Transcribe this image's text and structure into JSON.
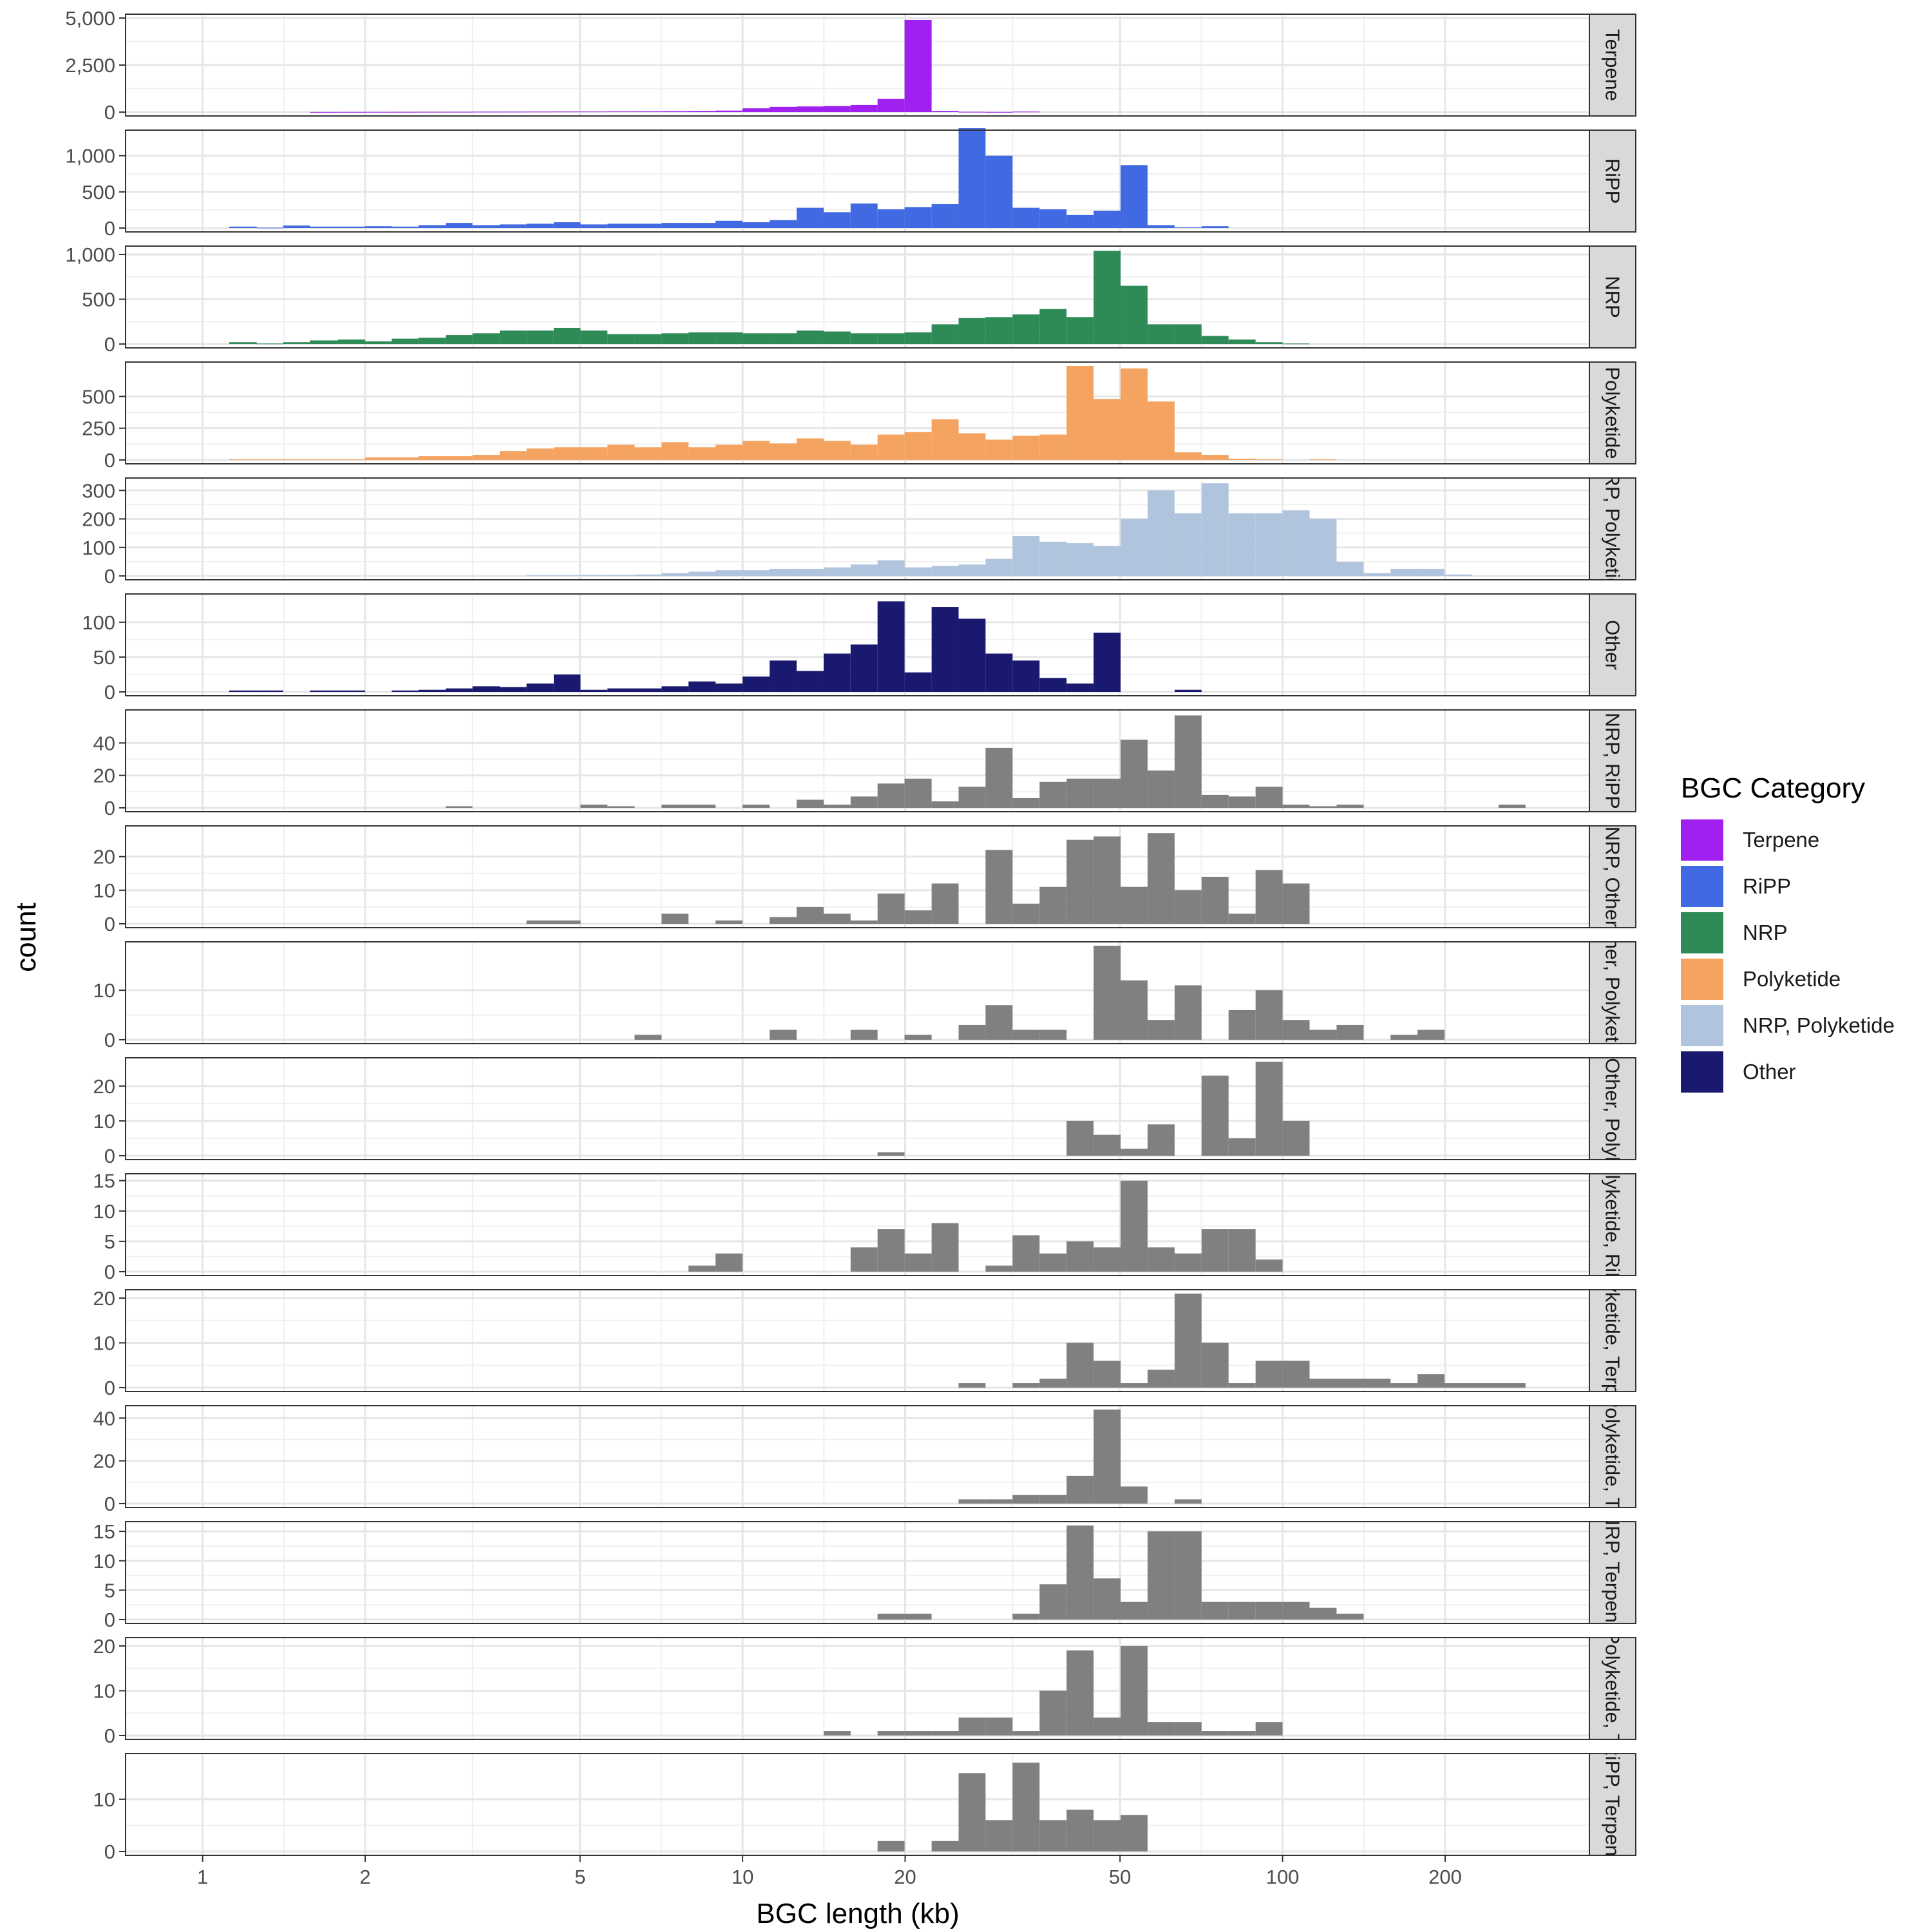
{
  "chart_data": {
    "type": "bar",
    "subtype": "faceted-histogram",
    "x_scale": "log10",
    "xlim": [
      0.72,
      370
    ],
    "x_ticks": [
      1,
      2,
      5,
      10,
      20,
      50,
      100,
      200
    ],
    "x_tick_labels": [
      "1",
      "2",
      "5",
      "10",
      "20",
      "50",
      "100",
      "200"
    ],
    "xlabel": "BGC length (kb)",
    "ylabel": "count",
    "grid": true,
    "legend": {
      "title": "BGC Category",
      "position": "right",
      "items": [
        {
          "label": "Terpene",
          "color": "#A020F0"
        },
        {
          "label": "RiPP",
          "color": "#4169E1"
        },
        {
          "label": "NRP",
          "color": "#2E8B57"
        },
        {
          "label": "Polyketide",
          "color": "#F4A460"
        },
        {
          "label": "NRP, Polyketide",
          "color": "#B0C4DE"
        },
        {
          "label": "Other",
          "color": "#191970"
        }
      ]
    },
    "bin_edges_kb": [
      1.0,
      1.12,
      1.26,
      1.41,
      1.58,
      1.78,
      2.0,
      2.24,
      2.51,
      2.82,
      3.16,
      3.55,
      3.98,
      4.47,
      5.01,
      5.62,
      6.31,
      7.08,
      7.94,
      8.91,
      10.0,
      11.22,
      12.59,
      14.13,
      15.85,
      17.78,
      19.95,
      22.39,
      25.12,
      28.18,
      31.62,
      35.48,
      39.81,
      44.67,
      50.12,
      56.23,
      63.1,
      70.79,
      79.43,
      89.13,
      100.0,
      112.2,
      125.9,
      141.3,
      158.5,
      177.8,
      199.5,
      223.9,
      251.2,
      281.8
    ],
    "facets": [
      {
        "strip": "Terpene",
        "color": "#A020F0",
        "ylim": [
          0,
          5000
        ],
        "y_ticks": [
          0,
          2500,
          5000
        ],
        "y_tick_labels": [
          "0",
          "2,500",
          "5,000"
        ],
        "counts": [
          0,
          0,
          0,
          0,
          5,
          8,
          10,
          12,
          14,
          16,
          20,
          22,
          25,
          28,
          30,
          35,
          40,
          50,
          60,
          80,
          200,
          280,
          300,
          320,
          380,
          700,
          4900,
          60,
          15,
          8,
          25,
          0,
          0,
          0,
          0,
          0,
          0,
          0,
          0,
          0,
          0,
          0,
          0,
          0,
          0,
          0,
          0,
          0,
          0
        ]
      },
      {
        "strip": "RiPP",
        "color": "#4169E1",
        "ylim": [
          0,
          1300
        ],
        "y_ticks": [
          0,
          500,
          1000
        ],
        "y_tick_labels": [
          "0",
          "500",
          "1,000"
        ],
        "counts": [
          0,
          20,
          5,
          35,
          20,
          20,
          25,
          20,
          40,
          70,
          40,
          50,
          60,
          80,
          50,
          60,
          60,
          70,
          70,
          100,
          80,
          110,
          280,
          220,
          340,
          260,
          290,
          330,
          1380,
          1000,
          280,
          260,
          180,
          240,
          870,
          40,
          10,
          25,
          0,
          0,
          0,
          0,
          0,
          0,
          0,
          0,
          0,
          0,
          0
        ]
      },
      {
        "strip": "NRP",
        "color": "#2E8B57",
        "ylim": [
          0,
          1050
        ],
        "y_ticks": [
          0,
          500,
          1000
        ],
        "y_tick_labels": [
          "0",
          "500",
          "1,000"
        ],
        "counts": [
          0,
          20,
          5,
          20,
          40,
          50,
          30,
          60,
          70,
          100,
          120,
          150,
          150,
          180,
          150,
          110,
          110,
          120,
          130,
          130,
          120,
          120,
          150,
          140,
          120,
          120,
          130,
          220,
          290,
          300,
          330,
          390,
          300,
          1040,
          650,
          220,
          220,
          90,
          50,
          20,
          5,
          0,
          0,
          0,
          0,
          0,
          0,
          0,
          0
        ]
      },
      {
        "strip": "Polyketide",
        "color": "#F4A460",
        "ylim": [
          0,
          740
        ],
        "y_ticks": [
          0,
          250,
          500
        ],
        "y_tick_labels": [
          "0",
          "250",
          "500"
        ],
        "counts": [
          0,
          5,
          5,
          5,
          5,
          5,
          20,
          20,
          30,
          30,
          40,
          70,
          90,
          100,
          100,
          120,
          100,
          140,
          100,
          120,
          150,
          130,
          170,
          150,
          120,
          200,
          220,
          320,
          210,
          160,
          190,
          200,
          740,
          480,
          720,
          460,
          60,
          40,
          10,
          5,
          0,
          5,
          0,
          0,
          0,
          0,
          0,
          0,
          0
        ]
      },
      {
        "strip": "NRP, Polyketide",
        "color": "#B0C4DE",
        "ylim": [
          0,
          330
        ],
        "y_ticks": [
          0,
          100,
          200,
          300
        ],
        "y_tick_labels": [
          "0",
          "100",
          "200",
          "300"
        ],
        "counts": [
          0,
          0,
          0,
          0,
          0,
          0,
          0,
          0,
          0,
          0,
          0,
          0,
          2,
          2,
          3,
          3,
          5,
          10,
          15,
          20,
          20,
          25,
          25,
          30,
          40,
          55,
          30,
          35,
          40,
          60,
          140,
          120,
          115,
          105,
          200,
          300,
          220,
          325,
          220,
          220,
          230,
          200,
          50,
          10,
          25,
          25,
          5,
          0,
          0
        ]
      },
      {
        "strip": "Other",
        "color": "#191970",
        "ylim": [
          0,
          135
        ],
        "y_ticks": [
          0,
          50,
          100
        ],
        "y_tick_labels": [
          "0",
          "50",
          "100"
        ],
        "counts": [
          0,
          2,
          2,
          0,
          2,
          2,
          0,
          2,
          3,
          5,
          8,
          7,
          12,
          25,
          3,
          5,
          5,
          8,
          15,
          12,
          22,
          45,
          30,
          55,
          68,
          130,
          28,
          122,
          105,
          55,
          45,
          20,
          12,
          85,
          0,
          0,
          3,
          0,
          0,
          0,
          0,
          0,
          0,
          0,
          0,
          0,
          0,
          0,
          0
        ]
      },
      {
        "strip": "NRP, RiPP",
        "color": "#808080",
        "ylim": [
          0,
          58
        ],
        "y_ticks": [
          0,
          20,
          40
        ],
        "y_tick_labels": [
          "0",
          "20",
          "40"
        ],
        "counts": [
          0,
          0,
          0,
          0,
          0,
          0,
          0,
          0,
          0,
          1,
          0,
          0,
          0,
          0,
          2,
          1,
          0,
          2,
          2,
          0,
          2,
          0,
          5,
          2,
          7,
          15,
          18,
          4,
          13,
          37,
          6,
          16,
          18,
          18,
          42,
          23,
          57,
          8,
          7,
          13,
          2,
          1,
          2,
          0,
          0,
          0,
          0,
          0,
          2
        ]
      },
      {
        "strip": "NRP, Other",
        "color": "#808080",
        "ylim": [
          0,
          28
        ],
        "y_ticks": [
          0,
          10,
          20
        ],
        "y_tick_labels": [
          "0",
          "10",
          "20"
        ],
        "counts": [
          0,
          0,
          0,
          0,
          0,
          0,
          0,
          0,
          0,
          0,
          0,
          0,
          1,
          1,
          0,
          0,
          0,
          3,
          0,
          1,
          0,
          2,
          5,
          3,
          1,
          9,
          4,
          12,
          0,
          22,
          6,
          11,
          25,
          26,
          11,
          27,
          10,
          14,
          3,
          16,
          12,
          0,
          0,
          0,
          0,
          0,
          0,
          0,
          0
        ]
      },
      {
        "strip": "Other, Polyketide",
        "color": "#808080",
        "ylim": [
          0,
          19
        ],
        "y_ticks": [
          0,
          10
        ],
        "y_tick_labels": [
          "0",
          "10"
        ],
        "counts": [
          0,
          0,
          0,
          0,
          0,
          0,
          0,
          0,
          0,
          0,
          0,
          0,
          0,
          0,
          0,
          0,
          1,
          0,
          0,
          0,
          0,
          2,
          0,
          0,
          2,
          0,
          1,
          0,
          3,
          7,
          2,
          2,
          0,
          19,
          12,
          4,
          11,
          0,
          6,
          10,
          4,
          2,
          3,
          0,
          1,
          2,
          0,
          0,
          0
        ]
      },
      {
        "strip": "NRP, Other, Polyketide",
        "color": "#808080",
        "ylim": [
          0,
          27
        ],
        "y_ticks": [
          0,
          10,
          20
        ],
        "y_tick_labels": [
          "0",
          "10",
          "20"
        ],
        "counts": [
          0,
          0,
          0,
          0,
          0,
          0,
          0,
          0,
          0,
          0,
          0,
          0,
          0,
          0,
          0,
          0,
          0,
          0,
          0,
          0,
          0,
          0,
          0,
          0,
          0,
          1,
          0,
          0,
          0,
          0,
          0,
          0,
          10,
          6,
          2,
          9,
          0,
          23,
          5,
          27,
          10,
          0,
          0,
          0,
          0,
          0,
          0,
          0,
          0
        ]
      },
      {
        "strip": "Polyketide, RiPP",
        "color": "#808080",
        "ylim": [
          0,
          15.5
        ],
        "y_ticks": [
          0,
          5,
          10,
          15
        ],
        "y_tick_labels": [
          "0",
          "5",
          "10",
          "15"
        ],
        "counts": [
          0,
          0,
          0,
          0,
          0,
          0,
          0,
          0,
          0,
          0,
          0,
          0,
          0,
          0,
          0,
          0,
          0,
          0,
          1,
          3,
          0,
          0,
          0,
          0,
          4,
          7,
          3,
          8,
          0,
          1,
          6,
          3,
          5,
          4,
          15,
          4,
          3,
          7,
          7,
          2,
          0,
          0,
          0,
          0,
          0,
          0,
          0,
          0,
          0
        ]
      },
      {
        "strip": "Polyketide, Terpene",
        "color": "#808080",
        "ylim": [
          0,
          21
        ],
        "y_ticks": [
          0,
          10,
          20
        ],
        "y_tick_labels": [
          "0",
          "10",
          "20"
        ],
        "counts": [
          0,
          0,
          0,
          0,
          0,
          0,
          0,
          0,
          0,
          0,
          0,
          0,
          0,
          0,
          0,
          0,
          0,
          0,
          0,
          0,
          0,
          0,
          0,
          0,
          0,
          0,
          0,
          0,
          1,
          0,
          1,
          2,
          10,
          6,
          1,
          4,
          21,
          10,
          1,
          6,
          6,
          2,
          2,
          2,
          1,
          3,
          1,
          1,
          1
        ]
      },
      {
        "strip": "NRP, Polyketide, Terpene",
        "color": "#808080",
        "ylim": [
          0,
          44
        ],
        "y_ticks": [
          0,
          20,
          40
        ],
        "y_tick_labels": [
          "0",
          "20",
          "40"
        ],
        "counts": [
          0,
          0,
          0,
          0,
          0,
          0,
          0,
          0,
          0,
          0,
          0,
          0,
          0,
          0,
          0,
          0,
          0,
          0,
          0,
          0,
          0,
          0,
          0,
          0,
          0,
          0,
          0,
          0,
          2,
          2,
          4,
          4,
          13,
          44,
          8,
          0,
          2,
          0,
          0,
          0,
          0,
          0,
          0,
          0,
          0,
          0,
          0,
          0,
          0
        ]
      },
      {
        "strip": "NRP, Terpene",
        "color": "#808080",
        "ylim": [
          0,
          16
        ],
        "y_ticks": [
          0,
          5,
          10,
          15
        ],
        "y_tick_labels": [
          "0",
          "5",
          "10",
          "15"
        ],
        "counts": [
          0,
          0,
          0,
          0,
          0,
          0,
          0,
          0,
          0,
          0,
          0,
          0,
          0,
          0,
          0,
          0,
          0,
          0,
          0,
          0,
          0,
          0,
          0,
          0,
          0,
          1,
          1,
          0,
          0,
          0,
          1,
          6,
          16,
          7,
          3,
          15,
          15,
          3,
          3,
          3,
          3,
          2,
          1,
          0,
          0,
          0,
          0,
          0,
          0
        ]
      },
      {
        "strip": "Other, Polyketide, Terpene",
        "color": "#808080",
        "ylim": [
          0,
          21
        ],
        "y_ticks": [
          0,
          10,
          20
        ],
        "y_tick_labels": [
          "0",
          "10",
          "20"
        ],
        "counts": [
          0,
          0,
          0,
          0,
          0,
          0,
          0,
          0,
          0,
          0,
          0,
          0,
          0,
          0,
          0,
          0,
          0,
          0,
          0,
          0,
          0,
          0,
          0,
          1,
          0,
          1,
          1,
          1,
          4,
          4,
          1,
          10,
          19,
          4,
          20,
          3,
          3,
          1,
          1,
          3,
          0,
          0,
          0,
          0,
          0,
          0,
          0,
          0,
          0
        ]
      },
      {
        "strip": "RiPP, Terpene",
        "color": "#808080",
        "ylim": [
          0,
          18
        ],
        "y_ticks": [
          0,
          10
        ],
        "y_tick_labels": [
          "0",
          "10"
        ],
        "counts": [
          0,
          0,
          0,
          0,
          0,
          0,
          0,
          0,
          0,
          0,
          0,
          0,
          0,
          0,
          0,
          0,
          0,
          0,
          0,
          0,
          0,
          0,
          0,
          0,
          0,
          2,
          0,
          2,
          15,
          6,
          17,
          6,
          8,
          6,
          7,
          0,
          0,
          0,
          0,
          0,
          0,
          0,
          0,
          0,
          0,
          0,
          0,
          0,
          0
        ]
      }
    ]
  }
}
